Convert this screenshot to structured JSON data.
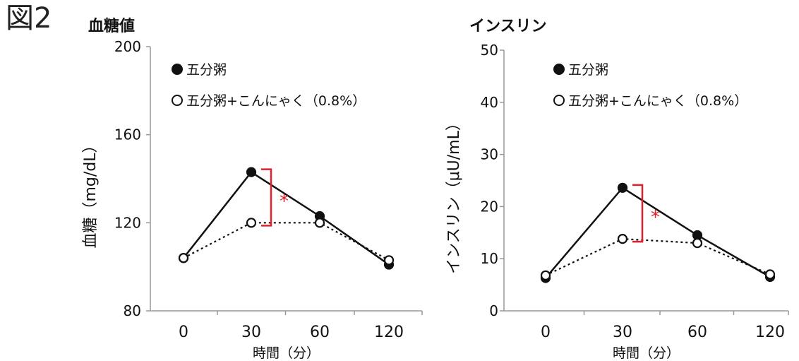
{
  "figure_label": "図2",
  "chart_data": [
    {
      "type": "line",
      "title": "血糖値",
      "xlabel": "時間（分）",
      "ylabel": "血糖（mg/dL）",
      "categories": [
        "0",
        "30",
        "60",
        "120"
      ],
      "yticks": [
        "200",
        "160",
        "120",
        "80"
      ],
      "ylim": [
        80,
        200
      ],
      "series": [
        {
          "name": "五分粥",
          "marker": "filled-circle",
          "line": "solid",
          "values": [
            104,
            143,
            123,
            101
          ]
        },
        {
          "name": "五分粥+こんにゃく（0.8%）",
          "marker": "open-circle",
          "line": "dotted",
          "values": [
            104,
            120,
            120,
            103
          ]
        }
      ],
      "annotation": {
        "text": "*",
        "category": "30",
        "color": "#e0202a"
      }
    },
    {
      "type": "line",
      "title": "インスリン",
      "xlabel": "時間（分）",
      "ylabel": "インスリン（μU/mL）",
      "categories": [
        "0",
        "30",
        "60",
        "120"
      ],
      "yticks": [
        "50",
        "40",
        "30",
        "20",
        "10",
        "0"
      ],
      "ylim": [
        0,
        50
      ],
      "series": [
        {
          "name": "五分粥",
          "marker": "filled-circle",
          "line": "solid",
          "values": [
            6.3,
            23.6,
            14.5,
            6.5
          ]
        },
        {
          "name": "五分粥+こんにゃく（0.8%）",
          "marker": "open-circle",
          "line": "dotted",
          "values": [
            6.8,
            13.8,
            13.0,
            7.0
          ]
        }
      ],
      "annotation": {
        "text": "*",
        "category": "30",
        "color": "#e0202a"
      }
    }
  ]
}
